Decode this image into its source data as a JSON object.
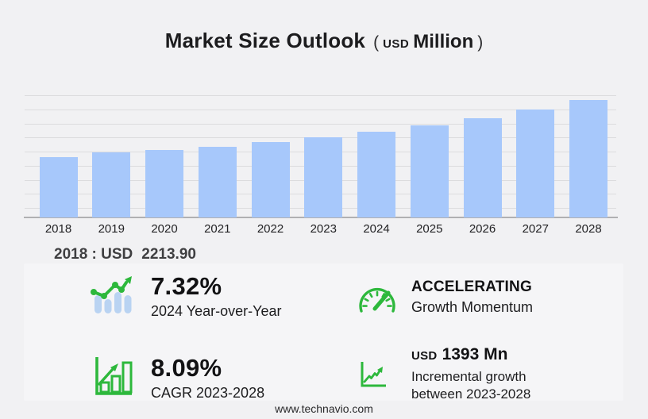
{
  "title": {
    "main": "Market Size Outlook",
    "paren_open": "(",
    "currency": "USD",
    "unit": "Million",
    "paren_close": ")"
  },
  "annotation": {
    "label": "2018 : USD",
    "value": "2213.90"
  },
  "chart_data": {
    "type": "bar",
    "title": "Market Size Outlook (USD Million)",
    "categories": [
      "2018",
      "2019",
      "2020",
      "2021",
      "2022",
      "2023",
      "2024",
      "2025",
      "2026",
      "2027",
      "2028"
    ],
    "values": [
      2213.9,
      2400,
      2465,
      2590,
      2755,
      2930,
      3144,
      3390,
      3655,
      3960,
      4323
    ],
    "xlabel": "",
    "ylabel": "",
    "ylim": [
      0,
      4900
    ],
    "grid": true,
    "gridline_count": 9,
    "legend": false,
    "labeled_point": {
      "category": "2018",
      "label": "2018 : USD 2213.90"
    }
  },
  "stats": [
    {
      "value": "7.32%",
      "label": "2024 Year-over-Year",
      "icon": "bar-chart-trend-icon"
    },
    {
      "value": "ACCELERATING",
      "label": "Growth Momentum",
      "icon": "speedometer-icon"
    },
    {
      "value": "8.09%",
      "label": "CAGR 2023-2028",
      "icon": "growth-bars-icon"
    },
    {
      "currency": "USD",
      "value": "1393 Mn",
      "label_line1": "Incremental growth",
      "label_line2": "between 2023-2028",
      "icon": "line-chart-icon"
    }
  ],
  "footer": {
    "url": "www.technavio.com"
  },
  "colors": {
    "background": "#f1f1f3",
    "bar_fill": "#a7c8fb",
    "icon_bar_blue": "#b9d3f2",
    "accent_green": "#2db83c",
    "gridline": "#dcdcde",
    "axis_line": "#b0b0b2"
  }
}
